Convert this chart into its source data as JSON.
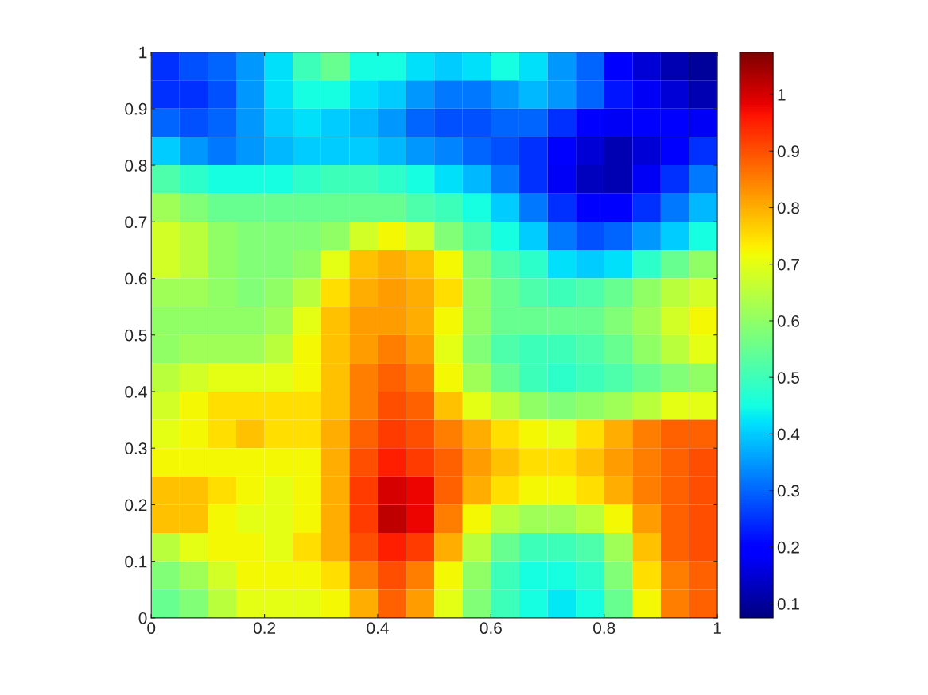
{
  "chart_data": {
    "type": "heatmap",
    "x": [
      0.025,
      0.075,
      0.125,
      0.175,
      0.225,
      0.275,
      0.325,
      0.375,
      0.425,
      0.475,
      0.525,
      0.575,
      0.625,
      0.675,
      0.725,
      0.775,
      0.825,
      0.875,
      0.925,
      0.975
    ],
    "y": [
      0.975,
      0.925,
      0.875,
      0.825,
      0.775,
      0.725,
      0.675,
      0.625,
      0.575,
      0.525,
      0.475,
      0.425,
      0.375,
      0.325,
      0.275,
      0.225,
      0.175,
      0.125,
      0.075,
      0.025
    ],
    "xlim": [
      0,
      1
    ],
    "xticks": [
      0,
      0.2,
      0.4,
      0.6,
      0.8,
      1
    ],
    "ylim": [
      0,
      1
    ],
    "yticks": [
      0,
      0.1,
      0.2,
      0.3,
      0.4,
      0.5,
      0.6,
      0.7,
      0.8,
      0.9,
      1
    ],
    "clim": [
      0.075,
      1.075
    ],
    "cticks": [
      0.1,
      0.2,
      0.3,
      0.4,
      0.5,
      0.6,
      0.7,
      0.8,
      0.9,
      1
    ],
    "grid": false,
    "cells": [
      [
        0.25,
        0.28,
        0.3,
        0.35,
        0.42,
        0.5,
        0.55,
        0.45,
        0.45,
        0.42,
        0.4,
        0.42,
        0.45,
        0.42,
        0.35,
        0.3,
        0.2,
        0.15,
        0.12,
        0.1
      ],
      [
        0.25,
        0.25,
        0.28,
        0.35,
        0.42,
        0.45,
        0.45,
        0.42,
        0.4,
        0.35,
        0.32,
        0.32,
        0.35,
        0.38,
        0.35,
        0.3,
        0.22,
        0.18,
        0.15,
        0.12
      ],
      [
        0.3,
        0.28,
        0.3,
        0.35,
        0.4,
        0.42,
        0.4,
        0.38,
        0.35,
        0.3,
        0.28,
        0.28,
        0.3,
        0.3,
        0.25,
        0.2,
        0.18,
        0.2,
        0.2,
        0.18
      ],
      [
        0.4,
        0.35,
        0.32,
        0.35,
        0.38,
        0.4,
        0.4,
        0.4,
        0.38,
        0.35,
        0.33,
        0.3,
        0.28,
        0.25,
        0.2,
        0.15,
        0.12,
        0.15,
        0.2,
        0.25
      ],
      [
        0.52,
        0.48,
        0.45,
        0.45,
        0.45,
        0.48,
        0.5,
        0.5,
        0.48,
        0.45,
        0.42,
        0.38,
        0.32,
        0.25,
        0.18,
        0.13,
        0.12,
        0.18,
        0.25,
        0.32
      ],
      [
        0.62,
        0.58,
        0.55,
        0.55,
        0.55,
        0.55,
        0.55,
        0.55,
        0.55,
        0.52,
        0.5,
        0.45,
        0.4,
        0.32,
        0.25,
        0.2,
        0.2,
        0.25,
        0.32,
        0.38
      ],
      [
        0.68,
        0.65,
        0.6,
        0.58,
        0.58,
        0.58,
        0.6,
        0.68,
        0.72,
        0.68,
        0.58,
        0.52,
        0.45,
        0.4,
        0.32,
        0.28,
        0.3,
        0.35,
        0.4,
        0.45
      ],
      [
        0.68,
        0.65,
        0.6,
        0.58,
        0.58,
        0.6,
        0.7,
        0.78,
        0.8,
        0.78,
        0.72,
        0.58,
        0.52,
        0.48,
        0.42,
        0.4,
        0.42,
        0.48,
        0.55,
        0.6
      ],
      [
        0.62,
        0.62,
        0.6,
        0.58,
        0.6,
        0.65,
        0.75,
        0.8,
        0.82,
        0.8,
        0.75,
        0.6,
        0.55,
        0.52,
        0.5,
        0.52,
        0.55,
        0.6,
        0.65,
        0.68
      ],
      [
        0.6,
        0.6,
        0.6,
        0.6,
        0.62,
        0.7,
        0.78,
        0.82,
        0.82,
        0.8,
        0.72,
        0.6,
        0.55,
        0.55,
        0.55,
        0.55,
        0.58,
        0.62,
        0.68,
        0.72
      ],
      [
        0.6,
        0.62,
        0.62,
        0.62,
        0.65,
        0.72,
        0.78,
        0.82,
        0.85,
        0.82,
        0.7,
        0.58,
        0.52,
        0.5,
        0.5,
        0.52,
        0.55,
        0.6,
        0.65,
        0.7
      ],
      [
        0.65,
        0.68,
        0.7,
        0.7,
        0.7,
        0.72,
        0.78,
        0.85,
        0.88,
        0.85,
        0.72,
        0.62,
        0.55,
        0.5,
        0.48,
        0.5,
        0.52,
        0.55,
        0.58,
        0.6
      ],
      [
        0.68,
        0.72,
        0.75,
        0.75,
        0.75,
        0.75,
        0.78,
        0.85,
        0.9,
        0.88,
        0.78,
        0.7,
        0.65,
        0.6,
        0.58,
        0.6,
        0.62,
        0.65,
        0.7,
        0.7
      ],
      [
        0.7,
        0.72,
        0.75,
        0.78,
        0.75,
        0.75,
        0.8,
        0.88,
        0.92,
        0.9,
        0.85,
        0.8,
        0.75,
        0.72,
        0.7,
        0.75,
        0.8,
        0.85,
        0.88,
        0.88
      ],
      [
        0.72,
        0.72,
        0.72,
        0.72,
        0.72,
        0.72,
        0.8,
        0.9,
        0.95,
        0.92,
        0.88,
        0.82,
        0.78,
        0.75,
        0.75,
        0.78,
        0.82,
        0.85,
        0.88,
        0.9
      ],
      [
        0.78,
        0.78,
        0.75,
        0.72,
        0.7,
        0.72,
        0.8,
        0.92,
        1.0,
        0.98,
        0.88,
        0.8,
        0.75,
        0.72,
        0.72,
        0.75,
        0.8,
        0.85,
        0.88,
        0.9
      ],
      [
        0.78,
        0.78,
        0.72,
        0.7,
        0.7,
        0.72,
        0.8,
        0.92,
        1.02,
        0.98,
        0.85,
        0.72,
        0.65,
        0.62,
        0.62,
        0.65,
        0.72,
        0.82,
        0.88,
        0.9
      ],
      [
        0.65,
        0.7,
        0.72,
        0.72,
        0.7,
        0.75,
        0.8,
        0.9,
        0.95,
        0.92,
        0.8,
        0.65,
        0.55,
        0.5,
        0.5,
        0.52,
        0.62,
        0.78,
        0.88,
        0.9
      ],
      [
        0.58,
        0.62,
        0.68,
        0.72,
        0.72,
        0.72,
        0.75,
        0.85,
        0.9,
        0.85,
        0.72,
        0.6,
        0.5,
        0.45,
        0.45,
        0.48,
        0.58,
        0.75,
        0.85,
        0.88
      ],
      [
        0.55,
        0.58,
        0.65,
        0.7,
        0.7,
        0.7,
        0.72,
        0.8,
        0.88,
        0.82,
        0.7,
        0.58,
        0.5,
        0.45,
        0.43,
        0.45,
        0.55,
        0.72,
        0.85,
        0.88
      ]
    ]
  }
}
